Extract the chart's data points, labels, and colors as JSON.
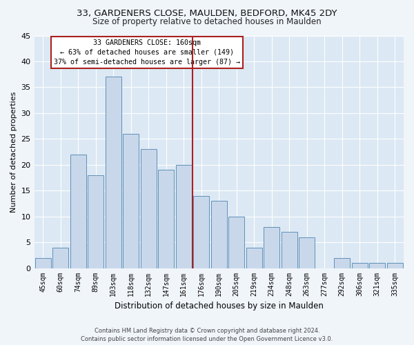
{
  "title_line1": "33, GARDENERS CLOSE, MAULDEN, BEDFORD, MK45 2DY",
  "title_line2": "Size of property relative to detached houses in Maulden",
  "xlabel": "Distribution of detached houses by size in Maulden",
  "ylabel": "Number of detached properties",
  "bar_color": "#c8d8ea",
  "bar_edgecolor": "#6090b8",
  "background_color": "#dce8f4",
  "grid_color": "#ffffff",
  "categories": [
    "45sqm",
    "60sqm",
    "74sqm",
    "89sqm",
    "103sqm",
    "118sqm",
    "132sqm",
    "147sqm",
    "161sqm",
    "176sqm",
    "190sqm",
    "205sqm",
    "219sqm",
    "234sqm",
    "248sqm",
    "263sqm",
    "277sqm",
    "292sqm",
    "306sqm",
    "321sqm",
    "335sqm"
  ],
  "values": [
    2,
    4,
    22,
    18,
    37,
    26,
    23,
    19,
    20,
    14,
    13,
    10,
    4,
    8,
    7,
    6,
    0,
    2,
    1,
    1,
    1
  ],
  "ylim": [
    0,
    45
  ],
  "yticks": [
    0,
    5,
    10,
    15,
    20,
    25,
    30,
    35,
    40,
    45
  ],
  "property_line_index": 8.5,
  "property_line_color": "#aa2020",
  "legend_title": "33 GARDENERS CLOSE: 160sqm",
  "legend_line1": "← 63% of detached houses are smaller (149)",
  "legend_line2": "37% of semi-detached houses are larger (87) →",
  "legend_edgecolor": "#aa2020",
  "footer_line1": "Contains HM Land Registry data © Crown copyright and database right 2024.",
  "footer_line2": "Contains public sector information licensed under the Open Government Licence v3.0.",
  "fig_bg": "#f0f5fa"
}
